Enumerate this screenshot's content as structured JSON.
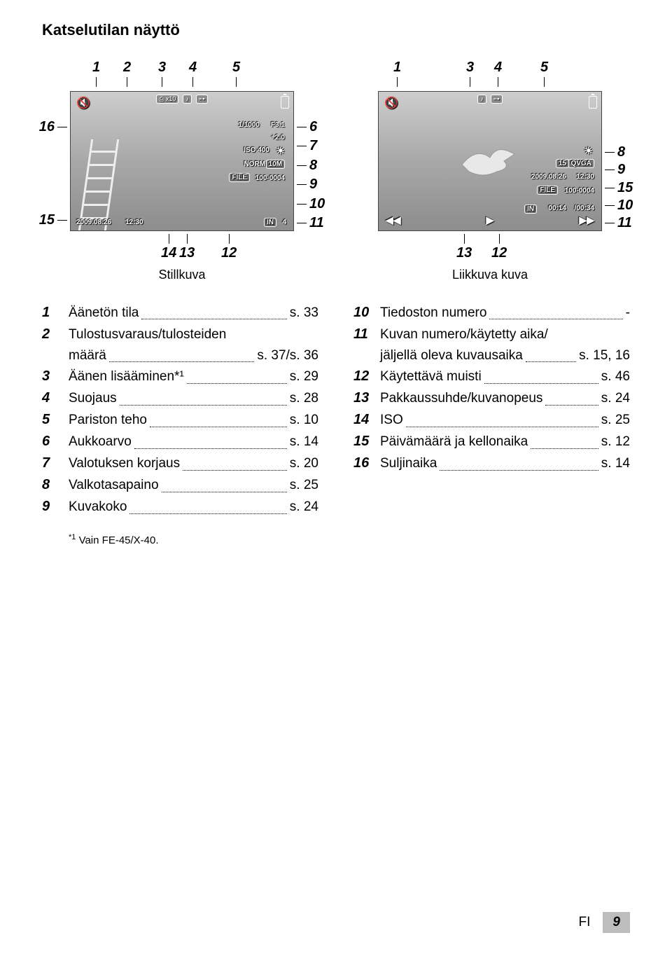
{
  "title": "Katselutilan näyttö",
  "colors": {
    "page_bg": "#ffffff",
    "thumb_grad_top": "#cdcdcd",
    "thumb_grad_bot": "#8d8d8d",
    "footer_box": "#bdbdbd"
  },
  "still": {
    "caption": "Stillkuva",
    "top_callouts": [
      "1",
      "2",
      "3",
      "4",
      "5"
    ],
    "left_callouts": [
      "16",
      "15"
    ],
    "right_callouts": [
      "6",
      "7",
      "8",
      "9",
      "10",
      "11"
    ],
    "bottom_callouts": [
      "14",
      "13",
      "12"
    ],
    "overlay": {
      "print_x": "x10",
      "shutter": "1/1000",
      "aperture": "F3.1",
      "ev": "+2.0",
      "iso": "ISO 400",
      "norm": "NORM",
      "size": "10M",
      "file": "FILE",
      "file_num": "100-0004",
      "date": "2009.08.26",
      "time": "12:30",
      "in": "IN",
      "in_num": "4"
    }
  },
  "movie": {
    "caption": "Liikkuva kuva",
    "top_callouts": [
      "1",
      "3",
      "4",
      "5"
    ],
    "right_callouts": [
      "8",
      "9",
      "15",
      "10",
      "11"
    ],
    "bottom_callouts": [
      "13",
      "12"
    ],
    "overlay": {
      "fps": "15",
      "res": "QVGA",
      "date": "2009.08.26",
      "time": "12:30",
      "file": "FILE",
      "file_num": "100-0004",
      "in": "IN",
      "elapsed": "00:14",
      "total": "/00:34"
    }
  },
  "legend_left": [
    {
      "n": "1",
      "label": "Äänetön tila",
      "page": "s. 33"
    },
    {
      "n": "2",
      "label": "Tulostusvaraus/tulosteiden",
      "cont_label": "määrä",
      "cont_page": "s. 37/s. 36"
    },
    {
      "n": "3",
      "label": "Äänen lisääminen*¹",
      "page": "s. 29"
    },
    {
      "n": "4",
      "label": "Suojaus",
      "page": "s. 28"
    },
    {
      "n": "5",
      "label": "Pariston teho",
      "page": "s. 10"
    },
    {
      "n": "6",
      "label": "Aukkoarvo",
      "page": "s. 14"
    },
    {
      "n": "7",
      "label": "Valotuksen korjaus",
      "page": "s. 20"
    },
    {
      "n": "8",
      "label": "Valkotasapaino",
      "page": "s. 25"
    },
    {
      "n": "9",
      "label": "Kuvakoko",
      "page": "s. 24"
    }
  ],
  "legend_right": [
    {
      "n": "10",
      "label": "Tiedoston numero",
      "page": "-"
    },
    {
      "n": "11",
      "label": "Kuvan numero/käytetty aika/",
      "cont_label": "jäljellä oleva kuvausaika",
      "cont_page": "s. 15, 16"
    },
    {
      "n": "12",
      "label": "Käytettävä muisti",
      "page": "s. 46"
    },
    {
      "n": "13",
      "label": "Pakkaussuhde/kuvanopeus",
      "page": "s. 24"
    },
    {
      "n": "14",
      "label": "ISO",
      "page": "s. 25"
    },
    {
      "n": "15",
      "label": "Päivämäärä ja kellonaika",
      "page": "s. 12"
    },
    {
      "n": "16",
      "label": "Suljinaika",
      "page": "s. 14"
    }
  ],
  "footnote": "Vain FE-45/X-40.",
  "footnote_marker": "*1",
  "footer_lang": "FI",
  "footer_page": "9"
}
